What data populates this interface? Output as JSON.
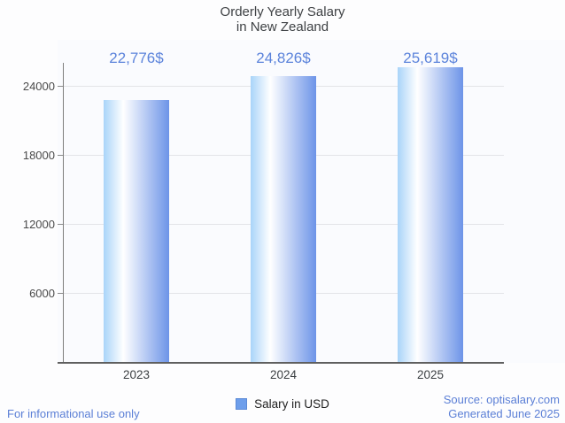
{
  "title": {
    "line1": "Orderly Yearly Salary",
    "line2": "in New Zealand"
  },
  "chart_data": {
    "type": "bar",
    "title": "Orderly Yearly Salary in New Zealand",
    "categories": [
      "2023",
      "2024",
      "2025"
    ],
    "values": [
      22776,
      24826,
      25619
    ],
    "value_labels": [
      "22,776$",
      "24,826$",
      "25,619$"
    ],
    "series_name": "Salary in USD",
    "xlabel": "",
    "ylabel": "",
    "ylim": [
      0,
      26000
    ],
    "yticks": [
      6000,
      12000,
      18000,
      24000
    ],
    "grid": true,
    "legend_position": "bottom"
  },
  "legend": {
    "label": "Salary in USD",
    "swatch_color": "#6d9eeb",
    "swatch_border_color": "#5b8ad6"
  },
  "footer": {
    "left": "For informational use only",
    "source": "Source: optisalary.com",
    "generated": "Generated June 2025"
  },
  "colors": {
    "value_label": "#5b83db",
    "footer_text": "#5b7fd6",
    "bar_gradient_left": "#a9d4f9",
    "bar_gradient_mid": "#ffffff",
    "bar_gradient_right": "#6d94e8",
    "title_text": "#3f4245",
    "axis_line": "#5f5f5f",
    "gridline": "#e3e4e8"
  }
}
